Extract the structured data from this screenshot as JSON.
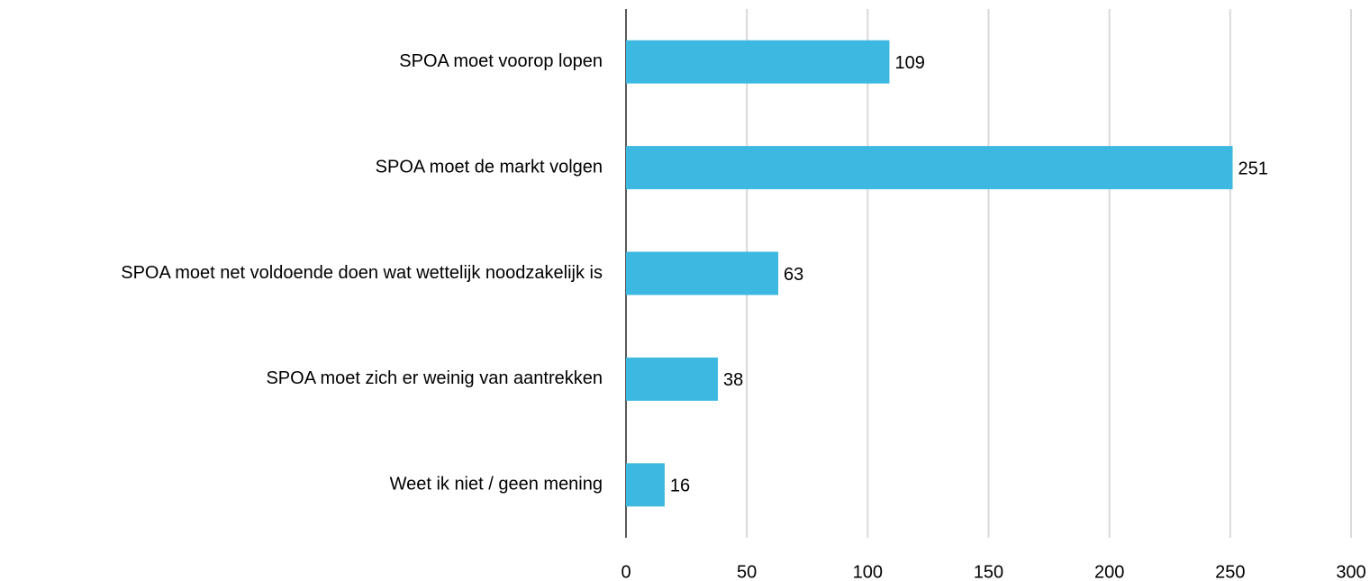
{
  "chart_data": {
    "type": "bar",
    "categories": [
      "SPOA moet voorop lopen",
      "SPOA moet de markt volgen",
      "SPOA moet net voldoende doen wat wettelijk noodzakelijk is",
      "SPOA moet zich er weinig van aantrekken",
      "Weet ik niet / geen mening"
    ],
    "values": [
      109,
      251,
      63,
      38,
      16
    ],
    "color": "#3db8e0",
    "xlim": [
      0,
      300
    ],
    "xticks": [
      0,
      50,
      100,
      150,
      200,
      250,
      300
    ],
    "grid": true
  }
}
